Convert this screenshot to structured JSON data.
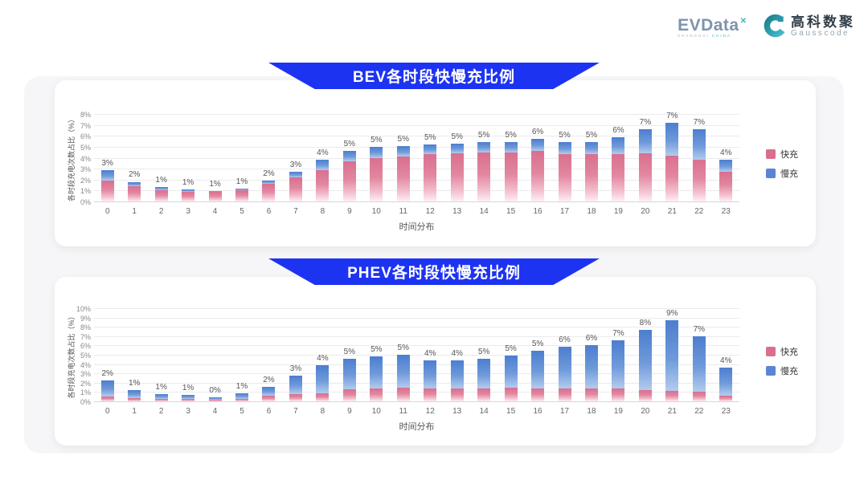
{
  "header": {
    "evdata": {
      "text": "EVData",
      "mark": "✕",
      "subtext_left": "SHANGHAI",
      "subtext_right": "CHINA"
    },
    "gausscode": {
      "cn": "高科数聚",
      "en": "Gausscode"
    }
  },
  "colors": {
    "banner_blue": "#1d33f2",
    "fast_pink": "#d96f8f",
    "slow_blue": "#5b84d6",
    "outer_panel": "#f6f6f8"
  },
  "chart_data": [
    {
      "type": "bar",
      "stacked": true,
      "title": "BEV各时段快慢充比例",
      "xlabel": "时间分布",
      "ylabel": "各时段充电次数占比（%）",
      "ylim": [
        0,
        8
      ],
      "ytick_step": 1,
      "grid": true,
      "legend_position": "right",
      "categories": [
        "0",
        "1",
        "2",
        "3",
        "4",
        "5",
        "6",
        "7",
        "8",
        "9",
        "10",
        "11",
        "12",
        "13",
        "14",
        "15",
        "16",
        "17",
        "18",
        "19",
        "20",
        "21",
        "22",
        "23"
      ],
      "series": [
        {
          "name": "快充",
          "color": "#d96f8f",
          "values": [
            1.9,
            1.4,
            1.0,
            0.9,
            0.85,
            1.0,
            1.6,
            2.2,
            2.9,
            3.7,
            4.0,
            4.1,
            4.3,
            4.4,
            4.5,
            4.45,
            4.6,
            4.3,
            4.3,
            4.3,
            4.4,
            4.2,
            3.8,
            2.7
          ]
        },
        {
          "name": "慢充",
          "color": "#5b84d6",
          "values": [
            1.0,
            0.4,
            0.3,
            0.2,
            0.1,
            0.2,
            0.3,
            0.5,
            0.9,
            0.9,
            1.0,
            1.0,
            0.9,
            0.9,
            0.9,
            1.0,
            1.1,
            1.1,
            1.1,
            1.6,
            2.2,
            3.0,
            2.8,
            1.1
          ]
        }
      ],
      "total_labels": [
        "3%",
        "2%",
        "1%",
        "1%",
        "1%",
        "1%",
        "2%",
        "3%",
        "4%",
        "5%",
        "5%",
        "5%",
        "5%",
        "5%",
        "5%",
        "5%",
        "6%",
        "5%",
        "5%",
        "6%",
        "7%",
        "7%",
        "7%",
        "4%"
      ]
    },
    {
      "type": "bar",
      "stacked": true,
      "title": "PHEV各时段快慢充比例",
      "xlabel": "时间分布",
      "ylabel": "各时段充电次数占比（%）",
      "ylim": [
        0,
        10
      ],
      "ytick_step": 1,
      "grid": true,
      "legend_position": "right",
      "categories": [
        "0",
        "1",
        "2",
        "3",
        "4",
        "5",
        "6",
        "7",
        "8",
        "9",
        "10",
        "11",
        "12",
        "13",
        "14",
        "15",
        "16",
        "17",
        "18",
        "19",
        "20",
        "21",
        "22",
        "23"
      ],
      "series": [
        {
          "name": "快充",
          "color": "#d96f8f",
          "values": [
            0.5,
            0.35,
            0.3,
            0.3,
            0.2,
            0.3,
            0.6,
            0.8,
            0.9,
            1.3,
            1.4,
            1.5,
            1.4,
            1.4,
            1.4,
            1.5,
            1.4,
            1.4,
            1.4,
            1.35,
            1.2,
            1.1,
            1.0,
            0.6
          ]
        },
        {
          "name": "慢充",
          "color": "#5b84d6",
          "values": [
            1.7,
            0.85,
            0.5,
            0.35,
            0.25,
            0.55,
            0.95,
            2.0,
            3.0,
            3.3,
            3.4,
            3.5,
            3.0,
            3.0,
            3.2,
            3.4,
            4.0,
            4.5,
            4.6,
            5.2,
            6.5,
            7.6,
            6.0,
            3.0
          ]
        }
      ],
      "total_labels": [
        "2%",
        "1%",
        "1%",
        "1%",
        "0%",
        "1%",
        "2%",
        "3%",
        "4%",
        "5%",
        "5%",
        "5%",
        "4%",
        "4%",
        "5%",
        "5%",
        "5%",
        "6%",
        "6%",
        "7%",
        "8%",
        "9%",
        "7%",
        "4%"
      ]
    }
  ]
}
